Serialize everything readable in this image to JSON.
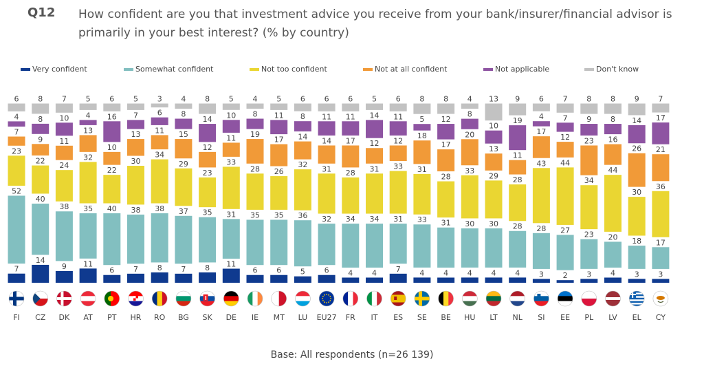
{
  "question": {
    "number": "Q12",
    "text": "How confident are you that investment advice you receive from your bank/insurer/financial advisor is primarily in your best interest? (% by country)"
  },
  "base_note": "Base: All respondents (n=26 139)",
  "chart_data": {
    "type": "bar",
    "stacked": true,
    "normalized": true,
    "orientation": "vertical",
    "legend_position": "top",
    "grid": false,
    "categories": [
      "FI",
      "CZ",
      "DK",
      "AT",
      "PT",
      "HR",
      "RO",
      "BG",
      "SK",
      "DE",
      "IE",
      "MT",
      "LU",
      "EU27",
      "FR",
      "IT",
      "ES",
      "SE",
      "BE",
      "HU",
      "LT",
      "NL",
      "SI",
      "EE",
      "PL",
      "LV",
      "EL",
      "CY"
    ],
    "series": [
      {
        "name": "Very confident",
        "color": "#0f3a8f",
        "values": [
          7,
          14,
          9,
          11,
          6,
          7,
          8,
          7,
          8,
          11,
          6,
          6,
          5,
          6,
          4,
          4,
          7,
          4,
          4,
          4,
          4,
          4,
          3,
          2,
          3,
          4,
          3,
          3
        ]
      },
      {
        "name": "Somewhat confident",
        "color": "#82bfc0",
        "values": [
          52,
          40,
          38,
          35,
          40,
          38,
          38,
          37,
          35,
          31,
          35,
          35,
          36,
          32,
          34,
          34,
          31,
          33,
          31,
          30,
          30,
          28,
          28,
          27,
          23,
          20,
          18,
          17
        ]
      },
      {
        "name": "Not too confident",
        "color": "#ead632",
        "values": [
          23,
          22,
          24,
          32,
          22,
          30,
          34,
          29,
          23,
          33,
          28,
          26,
          32,
          31,
          28,
          31,
          33,
          31,
          28,
          33,
          29,
          28,
          43,
          44,
          34,
          44,
          30,
          36
        ]
      },
      {
        "name": "Not at all confident",
        "color": "#f19a38",
        "values": [
          7,
          9,
          11,
          13,
          10,
          13,
          11,
          15,
          12,
          11,
          19,
          17,
          14,
          14,
          17,
          12,
          12,
          18,
          17,
          20,
          13,
          11,
          17,
          12,
          23,
          16,
          26,
          21
        ]
      },
      {
        "name": "Not applicable",
        "color": "#8e54a2",
        "values": [
          4,
          8,
          10,
          4,
          16,
          7,
          6,
          8,
          14,
          10,
          8,
          11,
          8,
          11,
          11,
          14,
          11,
          5,
          12,
          8,
          10,
          19,
          4,
          7,
          9,
          8,
          14,
          17
        ]
      },
      {
        "name": "Don't know",
        "color": "#c2c2c2",
        "values": [
          6,
          8,
          7,
          5,
          6,
          5,
          3,
          4,
          8,
          5,
          4,
          5,
          6,
          6,
          6,
          5,
          6,
          8,
          8,
          4,
          13,
          9,
          6,
          7,
          8,
          8,
          9,
          7
        ]
      }
    ],
    "icons": [
      "flag-fi-icon",
      "flag-cz-icon",
      "flag-dk-icon",
      "flag-at-icon",
      "flag-pt-icon",
      "flag-hr-icon",
      "flag-ro-icon",
      "flag-bg-icon",
      "flag-sk-icon",
      "flag-de-icon",
      "flag-ie-icon",
      "flag-mt-icon",
      "flag-lu-icon",
      "flag-eu-icon",
      "flag-fr-icon",
      "flag-it-icon",
      "flag-es-icon",
      "flag-se-icon",
      "flag-be-icon",
      "flag-hu-icon",
      "flag-lt-icon",
      "flag-nl-icon",
      "flag-si-icon",
      "flag-ee-icon",
      "flag-pl-icon",
      "flag-lv-icon",
      "flag-gr-icon",
      "flag-cy-icon"
    ]
  }
}
